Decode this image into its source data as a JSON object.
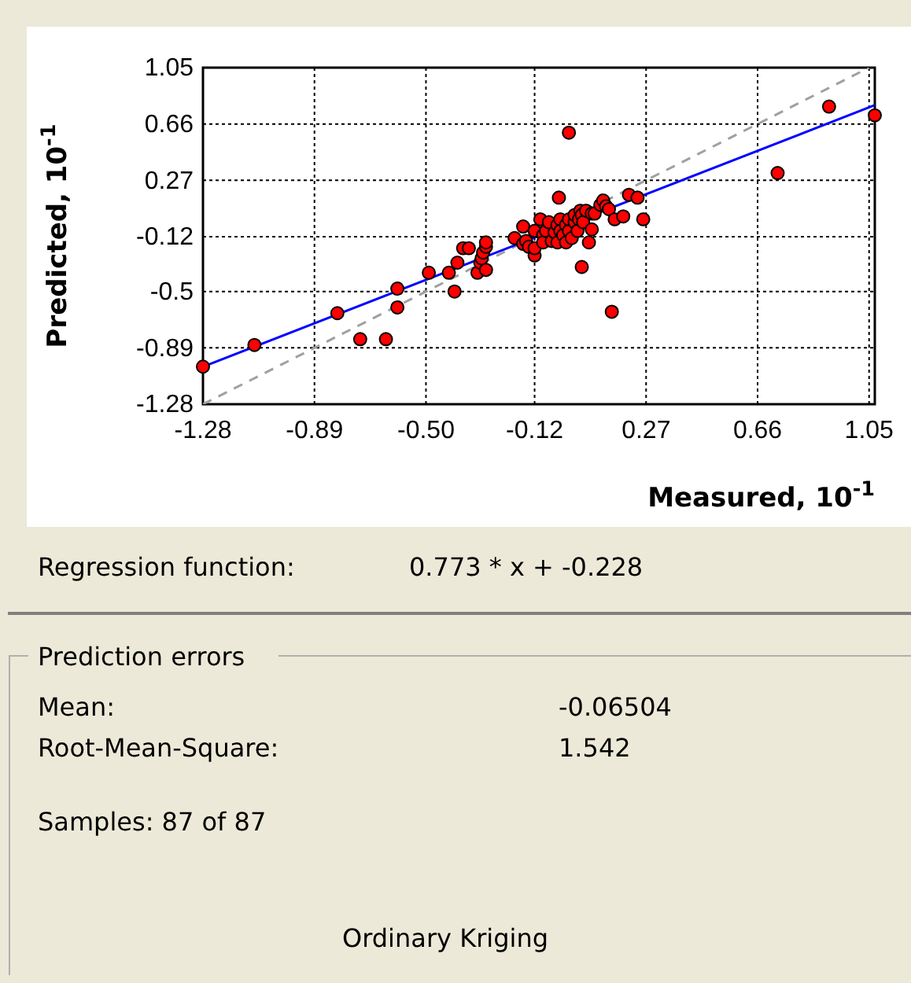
{
  "chart_data": {
    "type": "scatter",
    "xlabel": "Measured, 10$^{-1}$",
    "ylabel": "Predicted, 10$^{-1}$",
    "xlim": [
      -1.28,
      1.07
    ],
    "ylim": [
      -1.28,
      1.05
    ],
    "xticks": [
      -1.28,
      -0.89,
      {
        "value": -0.5,
        "label": "-0.50"
      },
      -0.12,
      0.27,
      0.66,
      1.05
    ],
    "yticks": [
      -1.28,
      -0.89,
      -0.5,
      -0.12,
      0.27,
      0.66,
      1.05
    ],
    "grid": true,
    "series": [
      {
        "type": "line",
        "color": "#a0a0a0",
        "line_style": "dashed",
        "marker": "none",
        "x": [
          -1.28,
          1.05
        ],
        "values": [
          -1.28,
          1.05
        ]
      },
      {
        "type": "line",
        "color": "#0000ff",
        "line_style": "solid",
        "marker": "none",
        "x": [
          -1.28,
          1.07
        ],
        "values": [
          -1.02,
          0.79
        ]
      },
      {
        "color": "#ff0000",
        "marker": "circle",
        "x": [
          -1.28,
          -1.1,
          -0.81,
          -0.73,
          -0.64,
          -0.6,
          -0.6,
          -0.49,
          -0.42,
          -0.4,
          -0.39,
          -0.37,
          -0.35,
          -0.32,
          -0.31,
          -0.305,
          -0.3,
          -0.29,
          -0.29,
          -0.29,
          -0.19,
          -0.16,
          -0.16,
          -0.15,
          -0.14,
          -0.12,
          -0.12,
          -0.12,
          -0.1,
          -0.09,
          -0.09,
          -0.08,
          -0.07,
          -0.06,
          -0.05,
          -0.04,
          -0.04,
          -0.03,
          -0.03,
          -0.02,
          -0.01,
          -0.01,
          0.0,
          0.0,
          -0.035,
          0.0,
          0.01,
          0.02,
          0.02,
          0.03,
          0.035,
          0.04,
          0.045,
          0.045,
          0.05,
          0.06,
          0.07,
          0.08,
          0.08,
          0.09,
          0.11,
          0.12,
          0.13,
          0.14,
          0.15,
          0.16,
          0.19,
          0.21,
          0.24,
          0.26,
          0.73,
          0.91,
          1.07
        ],
        "values": [
          -1.02,
          -0.87,
          -0.65,
          -0.83,
          -0.83,
          -0.48,
          -0.61,
          -0.37,
          -0.37,
          -0.5,
          -0.3,
          -0.2,
          -0.2,
          -0.37,
          -0.3,
          -0.27,
          -0.23,
          -0.35,
          -0.19,
          -0.16,
          -0.13,
          -0.05,
          -0.17,
          -0.15,
          -0.19,
          -0.08,
          -0.25,
          -0.2,
          0.0,
          -0.11,
          -0.16,
          -0.08,
          -0.02,
          -0.15,
          -0.09,
          -0.04,
          -0.16,
          -0.08,
          0.0,
          -0.11,
          -0.16,
          -0.04,
          -0.08,
          0.6,
          0.15,
          0.0,
          -0.13,
          -0.02,
          0.03,
          -0.08,
          0.0,
          0.06,
          0.03,
          -0.33,
          -0.02,
          0.06,
          -0.16,
          -0.07,
          0.04,
          0.04,
          0.1,
          0.13,
          0.09,
          0.07,
          -0.64,
          0.0,
          0.02,
          0.17,
          0.15,
          0.0,
          0.32,
          0.78,
          0.72
        ]
      }
    ],
    "annotations": [
      "Regression function:",
      "0.773 * x + -0.228",
      "Prediction errors",
      "Mean:",
      "-0.06504",
      "Root-Mean-Square:",
      "1.542",
      "Samples: 87 of 87",
      "Ordinary Kriging"
    ]
  }
}
